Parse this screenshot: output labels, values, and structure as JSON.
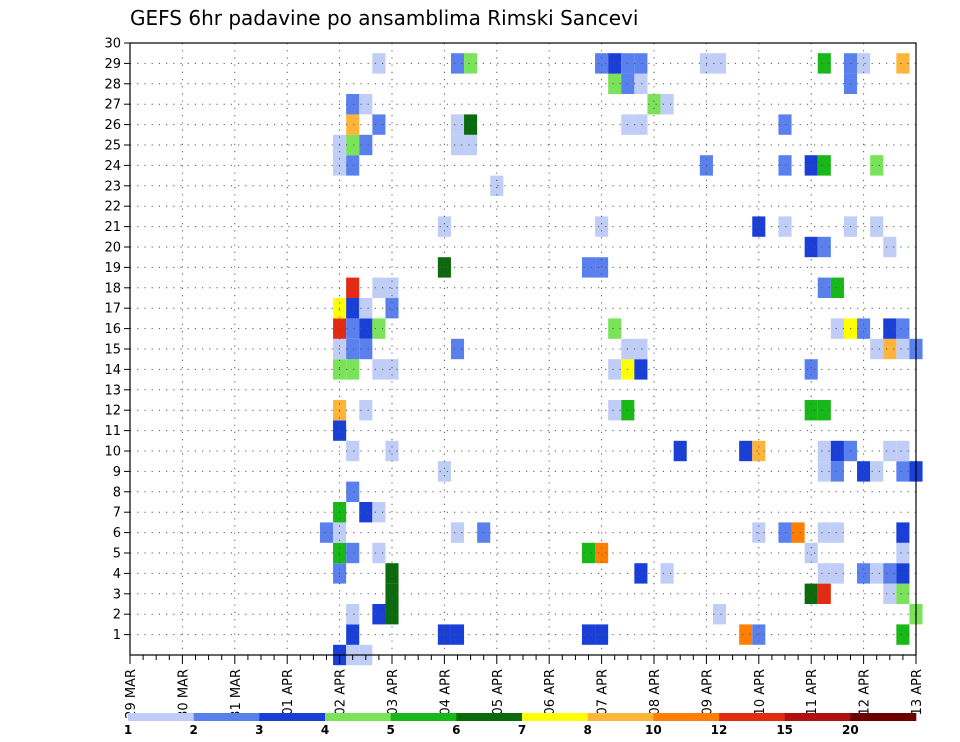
{
  "chart_data": {
    "type": "heatmap",
    "title": "GEFS 6hr padavine po ansamblima Rimski Sancevi",
    "xlabel": "",
    "ylabel": "",
    "x_tick_labels": [
      "29 MAR",
      "30 MAR",
      "31 MAR",
      "01 APR",
      "02 APR",
      "03 APR",
      "04 APR",
      "05 APR",
      "06 APR",
      "07 APR",
      "08 APR",
      "09 APR",
      "10 APR",
      "11 APR",
      "12 APR",
      "13 APR"
    ],
    "x_range_steps": [
      0,
      60
    ],
    "y_tick_labels": [
      "1",
      "2",
      "3",
      "4",
      "5",
      "6",
      "7",
      "8",
      "9",
      "10",
      "11",
      "12",
      "13",
      "14",
      "15",
      "16",
      "17",
      "18",
      "19",
      "20",
      "21",
      "22",
      "23",
      "24",
      "25",
      "26",
      "27",
      "28",
      "29",
      "30"
    ],
    "y_range": [
      0,
      30
    ],
    "grid": true,
    "colorbar": {
      "labels": [
        "1",
        "2",
        "3",
        "4",
        "5",
        "6",
        "7",
        "8",
        "10",
        "12",
        "15",
        "20"
      ],
      "colors": [
        "#bfcdf7",
        "#5a80ee",
        "#1a3fd6",
        "#7ae35a",
        "#17b817",
        "#0b6a0b",
        "#ffff00",
        "#ffb53a",
        "#ff7f00",
        "#e32a12",
        "#b01010",
        "#6e0000"
      ]
    },
    "cells": [
      [
        16,
        0,
        3
      ],
      [
        17,
        0,
        1
      ],
      [
        18,
        0,
        1
      ],
      [
        17,
        1,
        3
      ],
      [
        24,
        1,
        3
      ],
      [
        25,
        1,
        3
      ],
      [
        35,
        1,
        3
      ],
      [
        36,
        1,
        3
      ],
      [
        47,
        1,
        9
      ],
      [
        48,
        1,
        2
      ],
      [
        59,
        1,
        5
      ],
      [
        17,
        2,
        1
      ],
      [
        19,
        2,
        3
      ],
      [
        20,
        2,
        6
      ],
      [
        45,
        2,
        1
      ],
      [
        60,
        2,
        4
      ],
      [
        20,
        3,
        6
      ],
      [
        52,
        3,
        6
      ],
      [
        53,
        3,
        10
      ],
      [
        58,
        3,
        1
      ],
      [
        59,
        3,
        4
      ],
      [
        16,
        4,
        2
      ],
      [
        20,
        4,
        6
      ],
      [
        39,
        4,
        3
      ],
      [
        41,
        4,
        1
      ],
      [
        53,
        4,
        1
      ],
      [
        54,
        4,
        1
      ],
      [
        56,
        4,
        2
      ],
      [
        57,
        4,
        1
      ],
      [
        58,
        4,
        2
      ],
      [
        59,
        4,
        3
      ],
      [
        16,
        5,
        5
      ],
      [
        17,
        5,
        2
      ],
      [
        19,
        5,
        1
      ],
      [
        35,
        5,
        5
      ],
      [
        36,
        5,
        9
      ],
      [
        52,
        5,
        1
      ],
      [
        59,
        5,
        1
      ],
      [
        15,
        6,
        2
      ],
      [
        16,
        6,
        1
      ],
      [
        25,
        6,
        1
      ],
      [
        27,
        6,
        2
      ],
      [
        48,
        6,
        1
      ],
      [
        50,
        6,
        2
      ],
      [
        51,
        6,
        9
      ],
      [
        53,
        6,
        1
      ],
      [
        54,
        6,
        1
      ],
      [
        59,
        6,
        3
      ],
      [
        16,
        7,
        5
      ],
      [
        18,
        7,
        3
      ],
      [
        19,
        7,
        1
      ],
      [
        17,
        8,
        2
      ],
      [
        24,
        9,
        1
      ],
      [
        53,
        9,
        1
      ],
      [
        54,
        9,
        2
      ],
      [
        56,
        9,
        3
      ],
      [
        57,
        9,
        1
      ],
      [
        59,
        9,
        2
      ],
      [
        60,
        9,
        3
      ],
      [
        17,
        10,
        1
      ],
      [
        20,
        10,
        1
      ],
      [
        42,
        10,
        3
      ],
      [
        47,
        10,
        3
      ],
      [
        48,
        10,
        8
      ],
      [
        53,
        10,
        1
      ],
      [
        54,
        10,
        3
      ],
      [
        55,
        10,
        2
      ],
      [
        58,
        10,
        1
      ],
      [
        59,
        10,
        1
      ],
      [
        16,
        11,
        3
      ],
      [
        16,
        12,
        8
      ],
      [
        18,
        12,
        1
      ],
      [
        37,
        12,
        1
      ],
      [
        38,
        12,
        5
      ],
      [
        52,
        12,
        5
      ],
      [
        53,
        12,
        5
      ],
      [
        16,
        14,
        4
      ],
      [
        17,
        14,
        4
      ],
      [
        19,
        14,
        1
      ],
      [
        20,
        14,
        1
      ],
      [
        37,
        14,
        1
      ],
      [
        38,
        14,
        7
      ],
      [
        39,
        14,
        3
      ],
      [
        52,
        14,
        2
      ],
      [
        16,
        15,
        1
      ],
      [
        17,
        15,
        2
      ],
      [
        18,
        15,
        2
      ],
      [
        25,
        15,
        2
      ],
      [
        38,
        15,
        1
      ],
      [
        39,
        15,
        1
      ],
      [
        57,
        15,
        1
      ],
      [
        58,
        15,
        8
      ],
      [
        59,
        15,
        1
      ],
      [
        60,
        15,
        2
      ],
      [
        16,
        16,
        10
      ],
      [
        17,
        16,
        2
      ],
      [
        18,
        16,
        3
      ],
      [
        19,
        16,
        4
      ],
      [
        37,
        16,
        4
      ],
      [
        54,
        16,
        1
      ],
      [
        55,
        16,
        7
      ],
      [
        56,
        16,
        2
      ],
      [
        58,
        16,
        3
      ],
      [
        59,
        16,
        2
      ],
      [
        16,
        17,
        7
      ],
      [
        17,
        17,
        3
      ],
      [
        18,
        17,
        1
      ],
      [
        20,
        17,
        2
      ],
      [
        17,
        18,
        10
      ],
      [
        19,
        18,
        1
      ],
      [
        20,
        18,
        1
      ],
      [
        53,
        18,
        2
      ],
      [
        54,
        18,
        5
      ],
      [
        24,
        19,
        6
      ],
      [
        35,
        19,
        2
      ],
      [
        36,
        19,
        2
      ],
      [
        52,
        20,
        3
      ],
      [
        53,
        20,
        2
      ],
      [
        58,
        20,
        1
      ],
      [
        24,
        21,
        1
      ],
      [
        36,
        21,
        1
      ],
      [
        48,
        21,
        3
      ],
      [
        50,
        21,
        1
      ],
      [
        55,
        21,
        1
      ],
      [
        57,
        21,
        1
      ],
      [
        28,
        23,
        1
      ],
      [
        16,
        24,
        1
      ],
      [
        17,
        24,
        2
      ],
      [
        44,
        24,
        2
      ],
      [
        50,
        24,
        2
      ],
      [
        52,
        24,
        3
      ],
      [
        53,
        24,
        5
      ],
      [
        57,
        24,
        4
      ],
      [
        16,
        25,
        1
      ],
      [
        17,
        25,
        4
      ],
      [
        18,
        25,
        2
      ],
      [
        25,
        25,
        1
      ],
      [
        26,
        25,
        1
      ],
      [
        17,
        26,
        8
      ],
      [
        19,
        26,
        2
      ],
      [
        25,
        26,
        1
      ],
      [
        26,
        26,
        6
      ],
      [
        38,
        26,
        1
      ],
      [
        39,
        26,
        1
      ],
      [
        50,
        26,
        2
      ],
      [
        17,
        27,
        2
      ],
      [
        18,
        27,
        1
      ],
      [
        40,
        27,
        4
      ],
      [
        41,
        27,
        1
      ],
      [
        37,
        28,
        4
      ],
      [
        38,
        28,
        2
      ],
      [
        39,
        28,
        1
      ],
      [
        55,
        28,
        2
      ],
      [
        19,
        29,
        1
      ],
      [
        25,
        29,
        2
      ],
      [
        26,
        29,
        4
      ],
      [
        36,
        29,
        2
      ],
      [
        37,
        29,
        3
      ],
      [
        38,
        29,
        2
      ],
      [
        39,
        29,
        2
      ],
      [
        44,
        29,
        1
      ],
      [
        45,
        29,
        1
      ],
      [
        53,
        29,
        5
      ],
      [
        55,
        29,
        2
      ],
      [
        56,
        29,
        1
      ],
      [
        59,
        29,
        8
      ]
    ]
  }
}
